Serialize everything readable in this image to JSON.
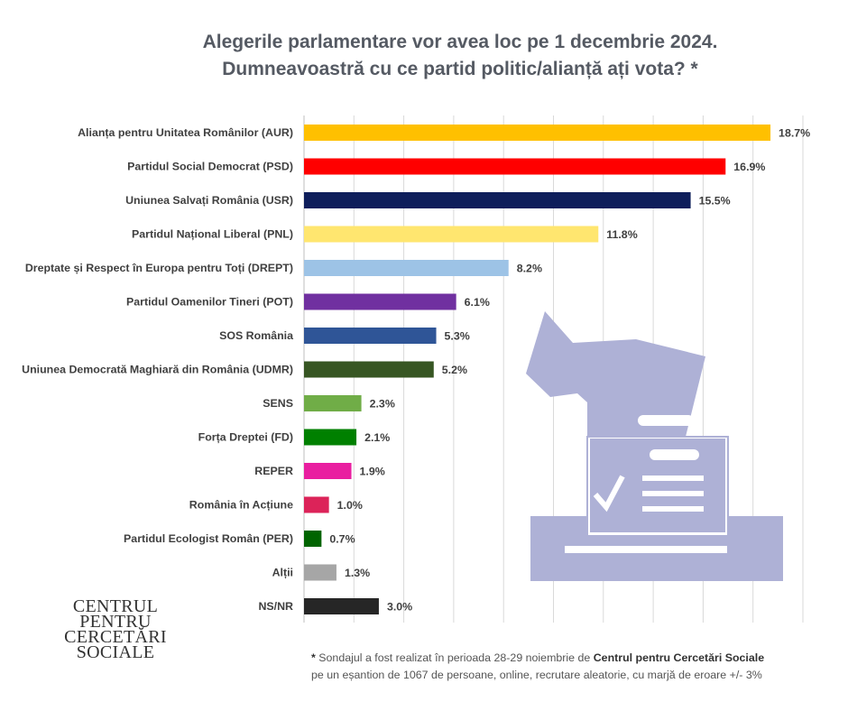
{
  "title_line1": "Alegerile parlamentare vor avea loc pe 1 decembrie 2024.",
  "title_line2": "Dumneavoastră cu ce partid politic/alianță ați vota? *",
  "chart_data": {
    "type": "bar",
    "orientation": "horizontal",
    "categories": [
      "Alianța pentru Unitatea Românilor (AUR)",
      "Partidul Social Democrat (PSD)",
      "Uniunea Salvați România (USR)",
      "Partidul Național Liberal (PNL)",
      "Dreptate și Respect în Europa pentru Toți (DREPT)",
      "Partidul Oamenilor Tineri (POT)",
      "SOS România",
      "Uniunea Democrată Maghiară din România (UDMR)",
      "SENS",
      "Forța Dreptei (FD)",
      "REPER",
      "România în Acțiune",
      "Partidul Ecologist Român (PER)",
      "Alții",
      "NS/NR"
    ],
    "values": [
      18.7,
      16.9,
      15.5,
      11.8,
      8.2,
      6.1,
      5.3,
      5.2,
      2.3,
      2.1,
      1.9,
      1.0,
      0.7,
      1.3,
      3.0
    ],
    "value_labels": [
      "18.7%",
      "16.9%",
      "15.5%",
      "11.8%",
      "8.2%",
      "6.1%",
      "5.3%",
      "5.2%",
      "2.3%",
      "2.1%",
      "1.9%",
      "1.0%",
      "0.7%",
      "1.3%",
      "3.0%"
    ],
    "colors": [
      "#FFC000",
      "#FF0000",
      "#0E1E5B",
      "#FFE66F",
      "#9DC3E6",
      "#7030A0",
      "#2F5597",
      "#375623",
      "#70AD47",
      "#008000",
      "#E91EA0",
      "#DC2359",
      "#006400",
      "#A6A6A6",
      "#262626"
    ],
    "xlim": [
      0,
      20
    ],
    "grid": true,
    "legend": "none"
  },
  "decoration": {
    "icon": "ballot-box-icon",
    "color": "#AEB1D6"
  },
  "brand": {
    "line1": "CENTRUL",
    "line2": "PENTRU",
    "line3": "CERCETĂRI",
    "line4": "SOCIALE"
  },
  "footnote": {
    "star": "*",
    "part1": " Sondajul a fost realizat în perioada 28-29 noiembrie de ",
    "org": "Centrul pentru Cercetări Sociale",
    "line2": "pe un eșantion de 1067 de persoane, online, recrutare aleatorie, cu marjă de eroare +/- 3%"
  }
}
